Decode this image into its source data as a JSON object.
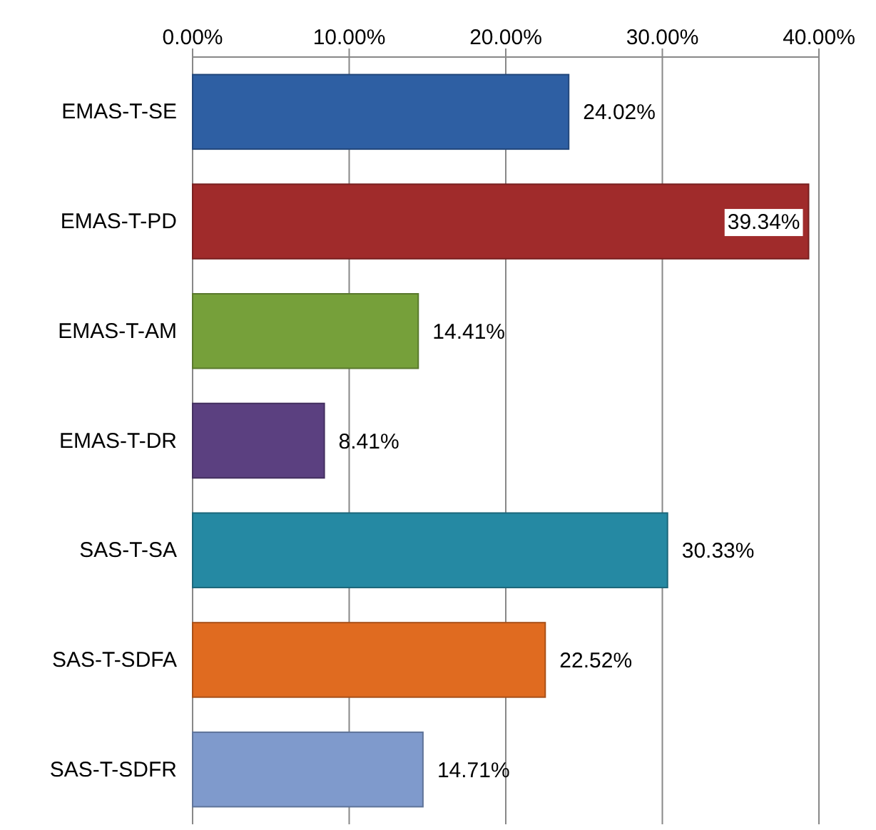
{
  "chart_data": {
    "type": "bar",
    "orientation": "horizontal",
    "categories": [
      "EMAS-T-SE",
      "EMAS-T-PD",
      "EMAS-T-AM",
      "EMAS-T-DR",
      "SAS-T-SA",
      "SAS-T-SDFA",
      "SAS-T-SDFR"
    ],
    "values": [
      24.02,
      39.34,
      14.41,
      8.41,
      30.33,
      22.52,
      14.71
    ],
    "colors": [
      "#2e5fa3",
      "#a02b2b",
      "#76a03a",
      "#5b4080",
      "#2589a3",
      "#e06b20",
      "#7f9acc"
    ],
    "value_labels": [
      "24.02%",
      "39.34%",
      "14.41%",
      "8.41%",
      "30.33%",
      "22.52%",
      "14.71%"
    ],
    "xlim": [
      0,
      40
    ],
    "xticks": [
      {
        "value": 0,
        "label": "0.00%"
      },
      {
        "value": 10,
        "label": "10.00%"
      },
      {
        "value": 20,
        "label": "20.00%"
      },
      {
        "value": 30,
        "label": "30.00%"
      },
      {
        "value": 40,
        "label": "40.00%"
      }
    ],
    "grid": "x"
  }
}
